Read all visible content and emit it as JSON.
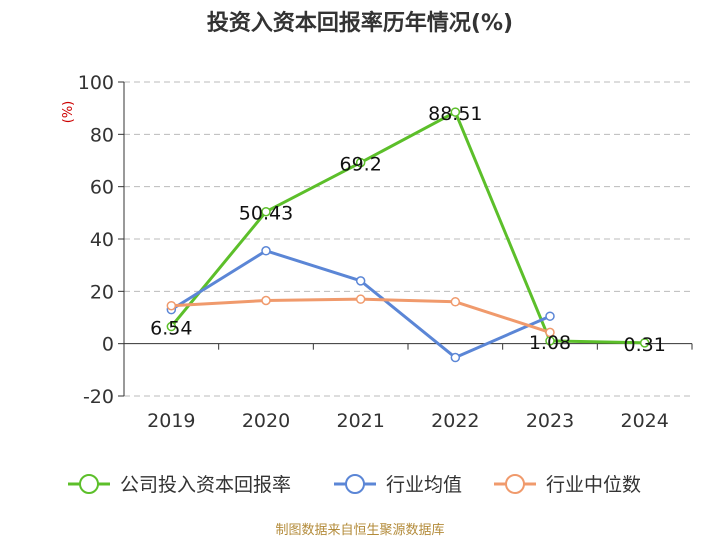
{
  "chart_data": {
    "type": "line",
    "title": "投资入资本回报率历年情况(%)",
    "ylabel": "(%)",
    "categories": [
      "2019",
      "2020",
      "2021",
      "2022",
      "2023",
      "2024"
    ],
    "ylim": [
      -20,
      100
    ],
    "yticks": [
      -20,
      0,
      20,
      40,
      60,
      80,
      100
    ],
    "grid": true,
    "legend_position": "bottom",
    "series": [
      {
        "name": "公司投入资本回报率",
        "color": "#5cbf2a",
        "values": [
          6.54,
          50.43,
          69.2,
          88.51,
          1.08,
          0.31
        ],
        "labels": [
          "6.54",
          "50.43",
          "69.2",
          "88.51",
          "1.08",
          "0.31"
        ]
      },
      {
        "name": "行业均值",
        "color": "#5b86d6",
        "values": [
          13.0,
          35.5,
          24.0,
          -5.3,
          10.5,
          null
        ],
        "labels": []
      },
      {
        "name": "行业中位数",
        "color": "#f09a6c",
        "values": [
          14.5,
          16.5,
          17.0,
          16.0,
          4.3,
          null
        ],
        "labels": []
      }
    ]
  },
  "source": "制图数据来自恒生聚源数据库"
}
